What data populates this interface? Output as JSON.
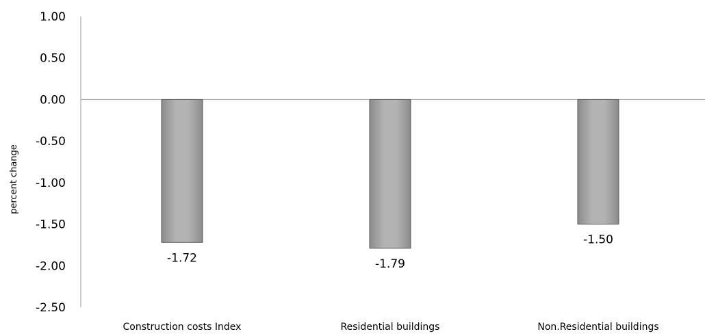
{
  "chart_data": {
    "type": "bar",
    "title": "",
    "xlabel": "",
    "ylabel": "percent change",
    "categories": [
      "Construction costs Index",
      "Residential buildings",
      "Non.Residential buildings"
    ],
    "values": [
      -1.72,
      -1.79,
      -1.5
    ],
    "data_labels": [
      "-1.72",
      "-1.79",
      "-1.50"
    ],
    "ylim": [
      -2.5,
      1.0
    ],
    "yticks": [
      1.0,
      0.5,
      0.0,
      -0.5,
      -1.0,
      -1.5,
      -2.0,
      -2.5
    ],
    "ytick_labels": [
      "1.00",
      "0.50",
      "0.00",
      "-0.50",
      "-1.00",
      "-1.50",
      "-2.00",
      "-2.50"
    ],
    "grid": false,
    "legend": "none",
    "bar_color": "#a6a6a6",
    "bar_edge_color": "#595959"
  }
}
